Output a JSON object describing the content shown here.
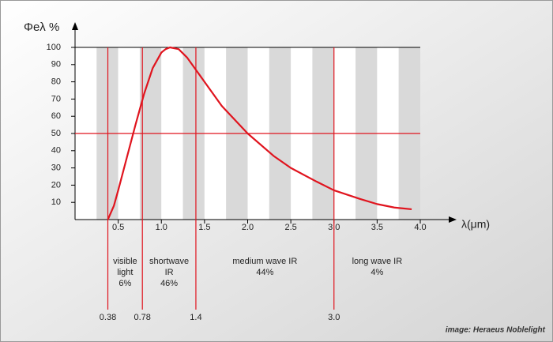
{
  "chart_data": {
    "type": "line",
    "y_label": "Φeλ %",
    "x_label": "λ(μm)",
    "credit": "image: Heraeus Noblelight",
    "x": [
      0.38,
      0.45,
      0.5,
      0.6,
      0.7,
      0.75,
      0.8,
      0.9,
      1.0,
      1.05,
      1.1,
      1.2,
      1.3,
      1.4,
      1.5,
      1.7,
      2.0,
      2.3,
      2.5,
      2.8,
      3.0,
      3.3,
      3.5,
      3.7,
      3.9
    ],
    "series": [
      {
        "name": "Φeλ",
        "color": "#e0141e",
        "values": [
          0,
          8,
          17,
          36,
          55,
          64,
          73,
          88,
          97,
          99,
          100,
          99,
          94,
          87,
          80,
          66,
          50,
          37,
          30,
          22,
          17,
          12,
          9,
          7,
          6
        ]
      }
    ],
    "xlim": [
      0,
      4
    ],
    "ylim": [
      0,
      100
    ],
    "xticks": [
      0.5,
      {
        "value": 1,
        "label": "1.0"
      },
      1.5,
      {
        "value": 2,
        "label": "2.0"
      },
      2.5,
      {
        "value": 3,
        "label": "3.0"
      },
      3.5,
      {
        "value": 4,
        "label": "4.0"
      }
    ],
    "yticks": [
      10,
      20,
      30,
      40,
      50,
      60,
      70,
      80,
      90,
      100
    ],
    "reference_y": [
      50
    ],
    "boundaries": [
      0.38,
      0.78,
      1.4,
      {
        "value": 3,
        "label": "3.0"
      }
    ],
    "regions": [
      {
        "lines": [
          "visible",
          "light",
          "6%"
        ]
      },
      {
        "lines": [
          "shortwave",
          "IR",
          "46%"
        ]
      },
      {
        "lines": [
          "medium wave IR",
          "44%"
        ]
      },
      {
        "lines": [
          "long wave IR",
          "4%"
        ]
      }
    ],
    "line_color": "#e0141e"
  }
}
